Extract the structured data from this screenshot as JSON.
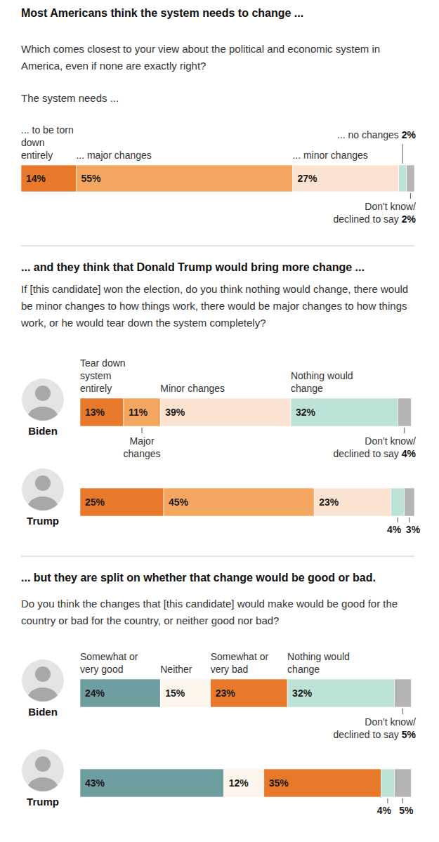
{
  "chart_data": [
    {
      "type": "bar",
      "title": "Most Americans think the system needs to change ...",
      "subtitle": "Which comes closest to your view about the political and economic system in America, even if none are exactly right?",
      "annotations": [
        "The system needs ..."
      ],
      "orientation": "horizontal",
      "stacked": true,
      "data_labels": true,
      "tick_labels": false,
      "xlim": [
        0,
        100
      ],
      "categories": [
        null
      ],
      "series": [
        {
          "name": "... to be torn down entirely",
          "color": "#e8782a",
          "values": [
            14
          ],
          "value_labels": [
            "14%"
          ]
        },
        {
          "name": "... major changes",
          "color": "#f4a660",
          "values": [
            55
          ],
          "value_labels": [
            "55%"
          ]
        },
        {
          "name": "... minor changes",
          "color": "#fce3d1",
          "values": [
            27
          ],
          "value_labels": [
            "27%"
          ]
        },
        {
          "name": "... no changes",
          "color": "#bde3d9",
          "values": [
            2
          ],
          "value_labels": [
            "2%"
          ]
        },
        {
          "name": "Don't know/ declined to say",
          "color": "#b4b4b4",
          "values": [
            2
          ],
          "value_labels": [
            "2%"
          ]
        }
      ]
    },
    {
      "type": "bar",
      "title": "... and they think that Donald Trump would bring more change ...",
      "subtitle": "If [this candidate] won the election, do you think nothing would change, there would be minor changes to how things work, there would be major changes to how things work, or he would tear down the system completely?",
      "orientation": "horizontal",
      "stacked": true,
      "data_labels": true,
      "tick_labels": "y",
      "xlim": [
        0,
        100
      ],
      "categories": [
        "Biden",
        "Trump"
      ],
      "series": [
        {
          "name": "Tear down system entirely",
          "color": "#e8782a",
          "values": [
            13,
            25
          ],
          "value_labels": [
            "13%",
            "25%"
          ]
        },
        {
          "name": "Major changes",
          "color": "#f4a660",
          "values": [
            11,
            45
          ],
          "value_labels": [
            "11%",
            "45%"
          ]
        },
        {
          "name": "Minor changes",
          "color": "#fce3d1",
          "values": [
            39,
            23
          ],
          "value_labels": [
            "39%",
            "23%"
          ]
        },
        {
          "name": "Nothing would change",
          "color": "#bde3d9",
          "values": [
            32,
            4
          ],
          "value_labels": [
            "32%",
            "4%"
          ]
        },
        {
          "name": "Don't know/ declined to say",
          "color": "#b4b4b4",
          "values": [
            4,
            3
          ],
          "value_labels": [
            "4%",
            "3%"
          ]
        }
      ]
    },
    {
      "type": "bar",
      "title": "... but they are split on whether that change would be good or bad.",
      "subtitle": "Do you think the changes that [this candidate] would make would be good for the country or bad for the country, or neither good nor bad?",
      "orientation": "horizontal",
      "stacked": true,
      "data_labels": true,
      "tick_labels": "y",
      "xlim": [
        0,
        100
      ],
      "categories": [
        "Biden",
        "Trump"
      ],
      "series": [
        {
          "name": "Somewhat or very good",
          "color": "#6e9e9f",
          "values": [
            24,
            43
          ],
          "value_labels": [
            "24%",
            "43%"
          ]
        },
        {
          "name": "Neither",
          "color": "#fbf5ec",
          "values": [
            15,
            12
          ],
          "value_labels": [
            "15%",
            "12%"
          ]
        },
        {
          "name": "Somewhat or very bad",
          "color": "#e8782a",
          "values": [
            23,
            35
          ],
          "value_labels": [
            "23%",
            "35%"
          ]
        },
        {
          "name": "Nothing would change",
          "color": "#bde3d9",
          "values": [
            32,
            4
          ],
          "value_labels": [
            "32%",
            "4%"
          ]
        },
        {
          "name": "Don't know/ declined to say",
          "color": "#b4b4b4",
          "values": [
            5,
            5
          ],
          "value_labels": [
            "5%",
            "5%"
          ]
        }
      ]
    }
  ]
}
